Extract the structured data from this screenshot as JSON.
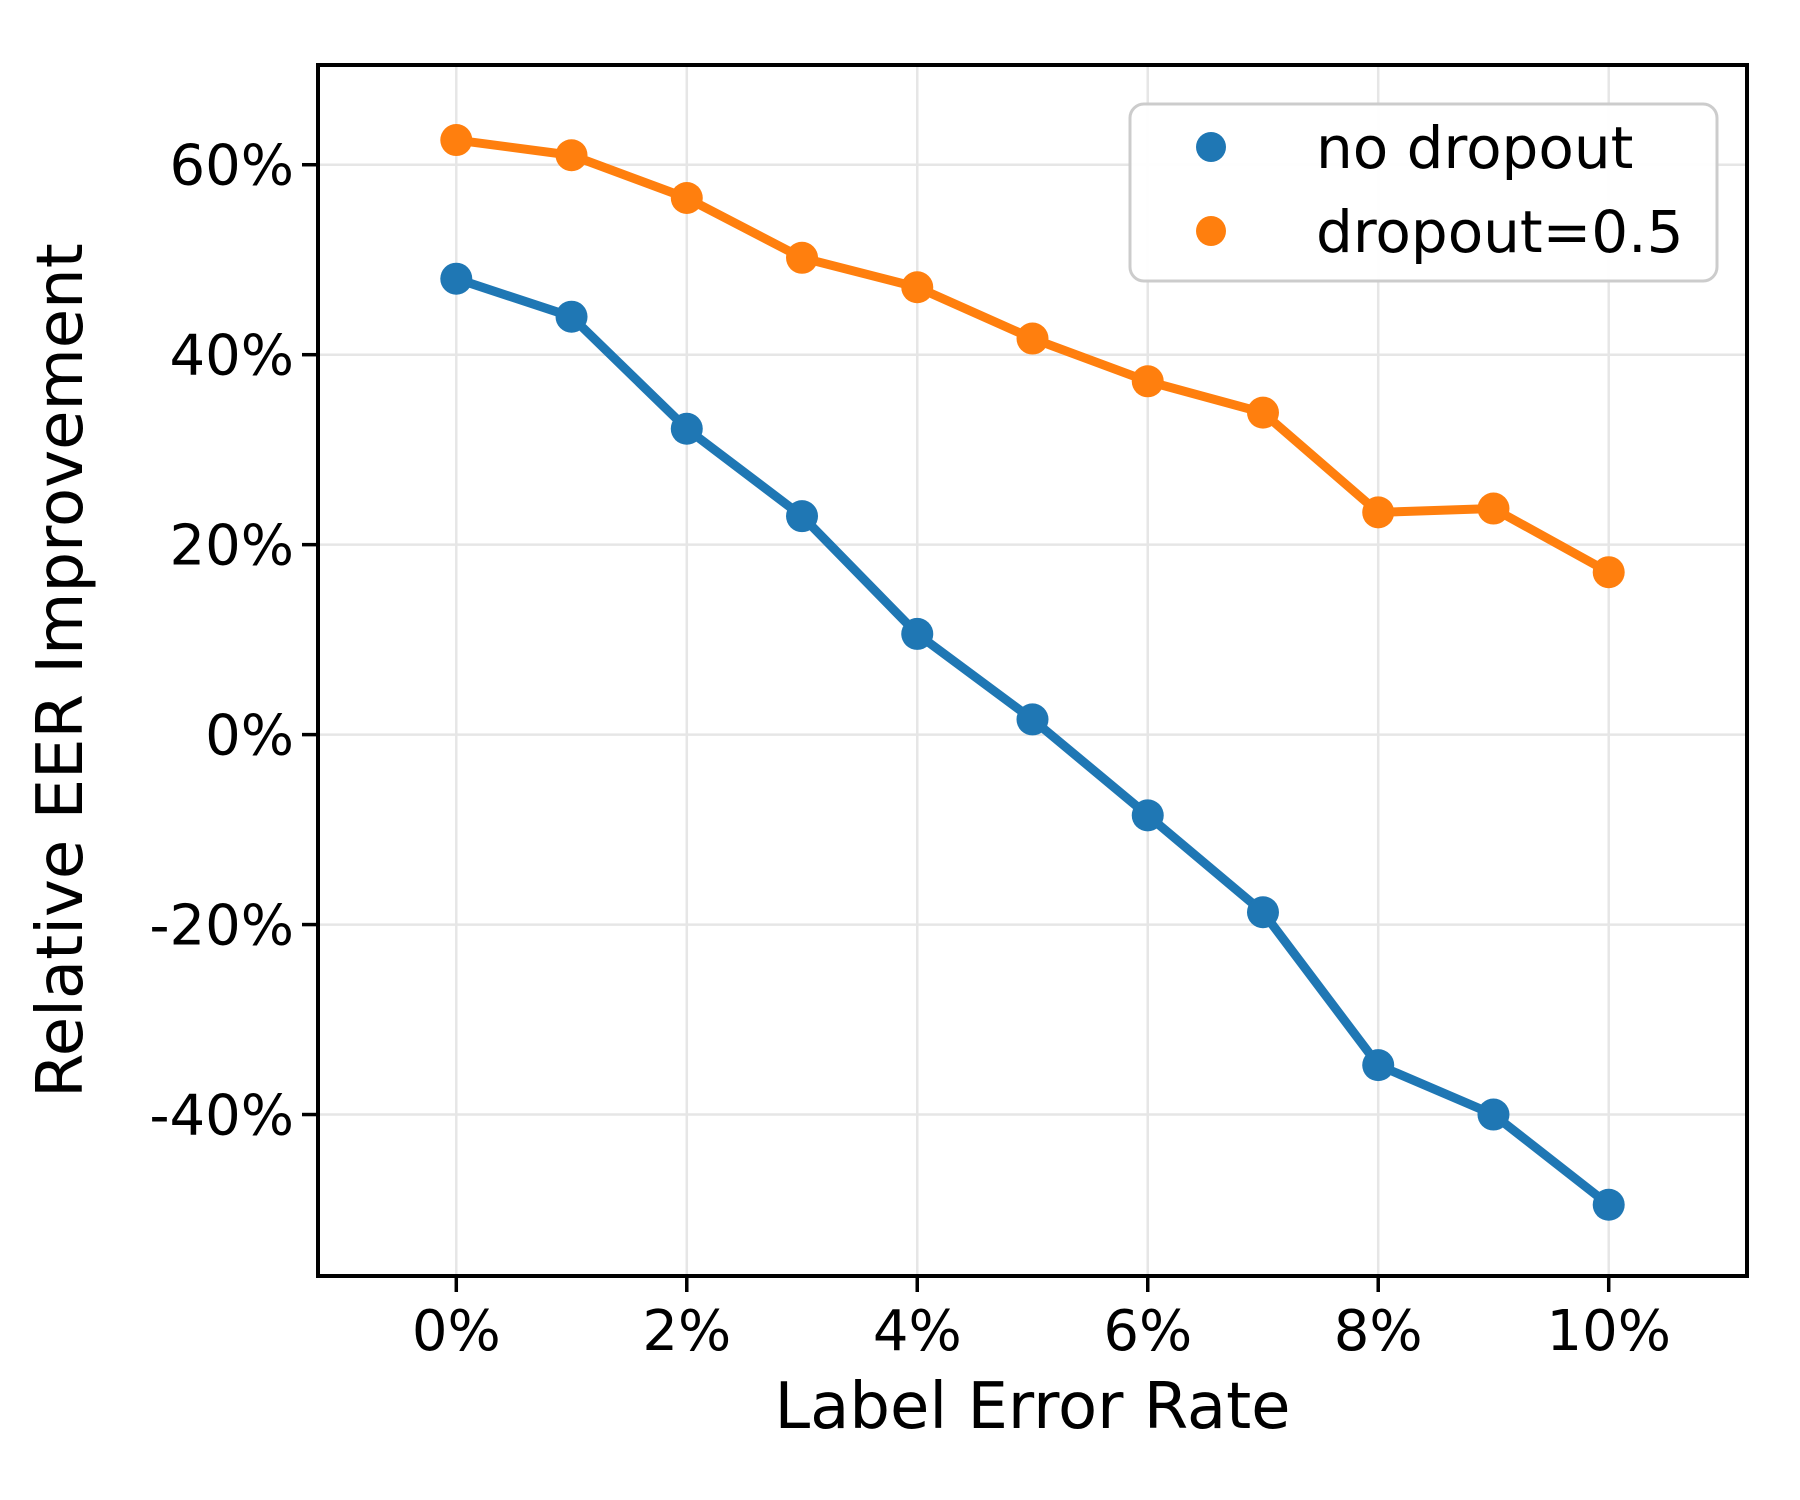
{
  "chart_data": {
    "type": "line",
    "title": "",
    "xlabel": "Label Error Rate",
    "ylabel": "Relative EER Improvement",
    "x": [
      0,
      1,
      2,
      3,
      4,
      5,
      6,
      7,
      8,
      9,
      10
    ],
    "series": [
      {
        "name": "no dropout",
        "color": "#1f77b4",
        "values": [
          48.0,
          44.0,
          32.2,
          23.0,
          10.6,
          1.6,
          -8.5,
          -18.7,
          -34.8,
          -40.0,
          -49.5
        ]
      },
      {
        "name": "dropout=0.5",
        "color": "#ff7f0e",
        "values": [
          62.6,
          61.0,
          56.5,
          50.2,
          47.1,
          41.7,
          37.2,
          33.9,
          23.4,
          23.8,
          17.1
        ]
      }
    ],
    "x_ticks": [
      0,
      2,
      4,
      6,
      8,
      10
    ],
    "x_tick_labels": [
      "0%",
      "2%",
      "4%",
      "6%",
      "8%",
      "10%"
    ],
    "y_ticks": [
      -40,
      -20,
      0,
      20,
      40,
      60
    ],
    "y_tick_labels": [
      "-40%",
      "-20%",
      "0%",
      "20%",
      "40%",
      "60%"
    ],
    "xlim": [
      -1.2,
      11.2
    ],
    "ylim": [
      -57.0,
      70.5
    ],
    "grid": true,
    "grid_color": "#e6e6e6",
    "spine_color": "#000000",
    "background_color": "#ffffff",
    "legend_position": "upper right",
    "legend_border_color": "#cccccc",
    "legend_entries": [
      "no dropout",
      "dropout=0.5"
    ]
  }
}
